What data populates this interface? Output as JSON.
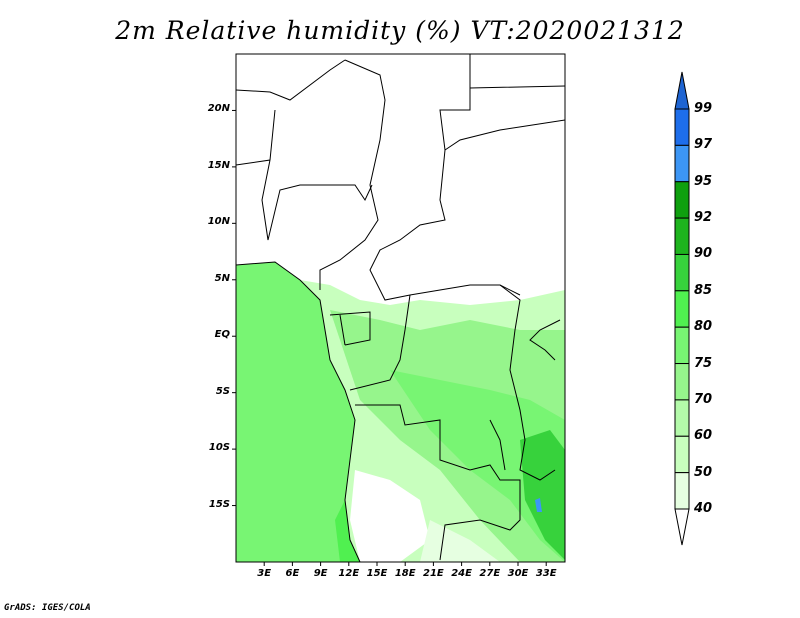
{
  "title": "2m Relative humidity (%) VT:2020021312",
  "credit": "GrADS: IGES/COLA",
  "map": {
    "lon_range": [
      0,
      35
    ],
    "lat_range": [
      -20,
      25
    ],
    "lon_ticks": [
      "3E",
      "6E",
      "9E",
      "12E",
      "15E",
      "18E",
      "21E",
      "24E",
      "27E",
      "30E",
      "33E"
    ],
    "lon_tick_values": [
      3,
      6,
      9,
      12,
      15,
      18,
      21,
      24,
      27,
      30,
      33
    ],
    "lat_ticks": [
      "20N",
      "15N",
      "10N",
      "5N",
      "EQ",
      "5S",
      "10S",
      "15S"
    ],
    "lat_tick_values": [
      20,
      15,
      10,
      5,
      0,
      -5,
      -10,
      -15
    ]
  },
  "colorbar": {
    "labels": [
      "99",
      "97",
      "95",
      "92",
      "90",
      "85",
      "80",
      "75",
      "70",
      "60",
      "50",
      "40"
    ],
    "colors": [
      "#1e64d2",
      "#1e6eeb",
      "#3c96f5",
      "#0fa00f",
      "#1eb41e",
      "#37d23c",
      "#50f050",
      "#78f573",
      "#96f58c",
      "#b4faaa",
      "#c8ffbe",
      "#e6ffe1",
      "#ffffff"
    ]
  }
}
